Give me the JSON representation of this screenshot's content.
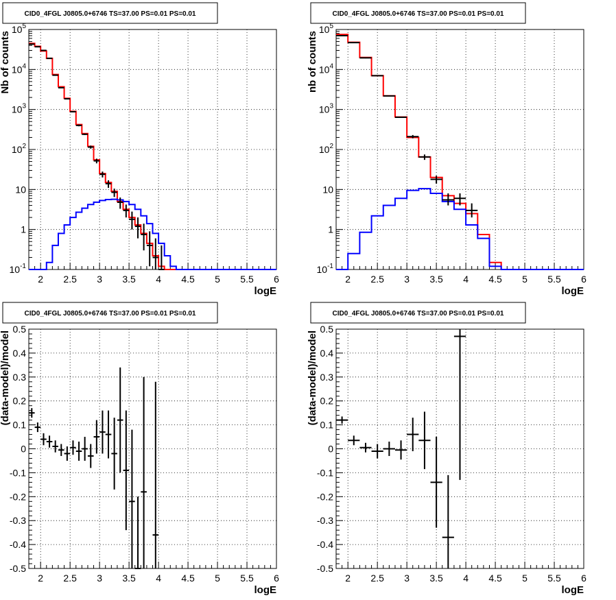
{
  "chart_data": [
    {
      "type": "line",
      "title": "CID0_4FGL J0805.0+6746 TS=37.00 PS=0.01 PS=0.01",
      "xlabel": "logE",
      "ylabel": "Nb of counts",
      "xlim": [
        1.8,
        6.0
      ],
      "ylim": [
        0.1,
        100000
      ],
      "yscale": "log",
      "grid": true,
      "x_tick_labels": [
        "2",
        "2.5",
        "3",
        "3.5",
        "4",
        "4.5",
        "5",
        "5.5",
        "6"
      ],
      "y_tick_labels": [
        "10^-1",
        "1",
        "10",
        "10^2",
        "10^3",
        "10^4",
        "10^5"
      ],
      "series": [
        {
          "color": "#ff0000",
          "style": "histogram",
          "bin_edges": [
            1.8,
            1.9,
            2.0,
            2.1,
            2.2,
            2.3,
            2.4,
            2.5,
            2.6,
            2.7,
            2.8,
            2.9,
            3.0,
            3.1,
            3.2,
            3.3,
            3.4,
            3.5,
            3.6,
            3.7,
            3.8,
            3.9,
            4.0,
            4.1,
            4.2,
            4.3,
            4.4,
            4.5,
            4.6,
            4.7,
            4.8,
            4.9,
            5.0,
            5.1,
            5.2,
            5.3,
            5.4,
            5.5,
            5.6,
            5.7,
            5.8,
            5.9,
            6.0
          ],
          "values": [
            45000,
            38000,
            29000,
            19000,
            7500,
            3700,
            1900,
            900,
            420,
            250,
            120,
            55,
            25,
            15,
            9,
            5,
            3.2,
            2,
            1.3,
            0.8,
            0.45,
            0.22,
            0.12,
            0.1,
            0.1,
            0.1,
            0.1,
            0.1,
            0.1,
            0.1,
            0.1,
            0.1,
            0.1,
            0.1,
            0.1,
            0.1,
            0.1,
            0.1,
            0.1,
            0.1,
            0.1,
            0.1
          ]
        },
        {
          "color": "#0000ff",
          "style": "histogram",
          "bin_edges": [
            1.8,
            1.9,
            2.0,
            2.1,
            2.2,
            2.3,
            2.4,
            2.5,
            2.6,
            2.7,
            2.8,
            2.9,
            3.0,
            3.1,
            3.2,
            3.3,
            3.4,
            3.5,
            3.6,
            3.7,
            3.8,
            3.9,
            4.0,
            4.1,
            4.2,
            4.3,
            4.4,
            4.5,
            4.6,
            4.7,
            4.8,
            4.9,
            5.0,
            5.1,
            5.2,
            5.3,
            5.4,
            5.5,
            5.6,
            5.7,
            5.8,
            5.9,
            6.0
          ],
          "values": [
            0.01,
            0.01,
            0.04,
            0.15,
            0.4,
            0.8,
            1.3,
            2,
            2.7,
            3.4,
            4.2,
            4.8,
            5.3,
            5.6,
            5.7,
            5.5,
            5.0,
            4.2,
            3.2,
            2.2,
            1.4,
            0.8,
            0.45,
            0.22,
            0.12,
            0.1,
            0.1,
            0.1,
            0.1,
            0.1,
            0.1,
            0.1,
            0.1,
            0.1,
            0.1,
            0.1,
            0.1,
            0.1,
            0.1,
            0.1,
            0.1,
            0.1
          ]
        },
        {
          "color": "#000000",
          "style": "points",
          "x": [
            1.85,
            1.95,
            2.05,
            2.15,
            2.25,
            2.35,
            2.45,
            2.55,
            2.65,
            2.75,
            2.85,
            2.95,
            3.05,
            3.15,
            3.25,
            3.35,
            3.45,
            3.55,
            3.65,
            3.75,
            3.85,
            3.95,
            4.05
          ],
          "y": [
            43000,
            37000,
            30000,
            19000,
            7200,
            3500,
            1850,
            880,
            400,
            240,
            115,
            52,
            24,
            14,
            8.5,
            4.8,
            3.0,
            1.8,
            1.2,
            0.75,
            0.4,
            0.2,
            0.1
          ],
          "ylow": [
            42000,
            36000,
            29500,
            18800,
            7100,
            3440,
            1800,
            850,
            380,
            230,
            105,
            45,
            20,
            11,
            6.5,
            3.3,
            2,
            1,
            0.6,
            0.3,
            0.12,
            0.05,
            0.02
          ],
          "yhigh": [
            44000,
            38000,
            30500,
            19200,
            7300,
            3560,
            1900,
            910,
            420,
            250,
            125,
            59,
            28,
            17,
            10.5,
            6.3,
            4.2,
            2.8,
            2.0,
            1.4,
            0.9,
            0.6,
            0.4
          ]
        }
      ]
    },
    {
      "type": "line",
      "title": "CID0_4FGL J0805.0+6746 TS=37.00 PS=0.01 PS=0.01",
      "xlabel": "logE",
      "ylabel": "nb of counts",
      "xlim": [
        1.8,
        6.0
      ],
      "ylim": [
        0.1,
        100000
      ],
      "yscale": "log",
      "grid": true,
      "x_tick_labels": [
        "2",
        "2.5",
        "3",
        "3.5",
        "4",
        "4.5",
        "5",
        "5.5",
        "6"
      ],
      "y_tick_labels": [
        "10^-1",
        "1",
        "10",
        "10^2",
        "10^3",
        "10^4",
        "10^5"
      ],
      "series": [
        {
          "color": "#ff0000",
          "style": "histogram",
          "bin_edges": [
            1.8,
            2.0,
            2.2,
            2.4,
            2.6,
            2.8,
            3.0,
            3.2,
            3.4,
            3.6,
            3.8,
            4.0,
            4.2,
            4.4,
            4.6,
            4.8,
            5.0,
            5.2,
            5.4,
            5.6,
            5.8,
            6.0
          ],
          "values": [
            75000,
            48000,
            20000,
            7000,
            2200,
            650,
            200,
            65,
            20,
            7,
            4.5,
            2.5,
            0.75,
            0.15,
            0.1,
            0.1,
            0.1,
            0.1,
            0.1,
            0.1,
            0.1
          ]
        },
        {
          "color": "#0000ff",
          "style": "histogram",
          "bin_edges": [
            1.8,
            2.0,
            2.2,
            2.4,
            2.6,
            2.8,
            3.0,
            3.2,
            3.4,
            3.6,
            3.8,
            4.0,
            4.2,
            4.4,
            4.6,
            4.8,
            5.0,
            5.2,
            5.4,
            5.6,
            5.8,
            6.0
          ],
          "values": [
            0.01,
            0.25,
            0.85,
            2.2,
            4.0,
            6.0,
            9.5,
            10.5,
            8.0,
            5.0,
            3.2,
            1.3,
            0.6,
            0.12,
            0.1,
            0.1,
            0.1,
            0.1,
            0.1,
            0.1,
            0.1
          ]
        },
        {
          "color": "#000000",
          "style": "points",
          "x": [
            1.9,
            2.1,
            2.3,
            2.5,
            2.7,
            2.9,
            3.1,
            3.3,
            3.5,
            3.7,
            3.9,
            4.1
          ],
          "y": [
            70000,
            47000,
            19500,
            7000,
            2180,
            640,
            210,
            65,
            18,
            5.5,
            6.0,
            3.0
          ],
          "ylow": [
            68000,
            46000,
            19000,
            6900,
            2150,
            620,
            190,
            55,
            14,
            4,
            4,
            2
          ],
          "yhigh": [
            72000,
            48000,
            20000,
            7100,
            2210,
            660,
            230,
            75,
            22,
            8,
            8,
            4.5
          ]
        }
      ]
    },
    {
      "type": "scatter",
      "title": "CID0_4FGL J0805.0+6746 TS=37.00 PS=0.01 PS=0.01",
      "xlabel": "logE",
      "ylabel": "(data-model)/model",
      "xlim": [
        1.8,
        6.0
      ],
      "ylim": [
        -0.5,
        0.5
      ],
      "grid": true,
      "x_tick_labels": [
        "2",
        "2.5",
        "3",
        "3.5",
        "4",
        "4.5",
        "5",
        "5.5",
        "6"
      ],
      "y_tick_labels": [
        "-0.5",
        "-0.4",
        "-0.3",
        "-0.2",
        "-0.1",
        "0",
        "0.1",
        "0.2",
        "0.3",
        "0.4",
        "0.5"
      ],
      "series": [
        {
          "color": "#000000",
          "x": [
            1.85,
            1.95,
            2.05,
            2.15,
            2.25,
            2.35,
            2.45,
            2.55,
            2.65,
            2.75,
            2.85,
            2.95,
            3.05,
            3.15,
            3.25,
            3.35,
            3.45,
            3.55,
            3.65,
            3.75,
            3.95
          ],
          "y": [
            0.15,
            0.09,
            0.04,
            0.03,
            0.01,
            -0.005,
            -0.02,
            0.005,
            -0.01,
            0.0,
            -0.03,
            0.05,
            0.07,
            0.06,
            -0.02,
            0.12,
            -0.09,
            -0.22,
            -0.5,
            -0.18,
            -0.36
          ],
          "yerr": [
            0.02,
            0.02,
            0.025,
            0.025,
            0.025,
            0.025,
            0.03,
            0.03,
            0.04,
            0.05,
            0.05,
            0.07,
            0.09,
            0.1,
            0.15,
            0.22,
            0.25,
            0.3,
            0.3,
            0.48,
            0.64
          ]
        }
      ]
    },
    {
      "type": "scatter",
      "title": "CID0_4FGL J0805.0+6746 TS=37.00 PS=0.01 PS=0.01",
      "xlabel": "logE",
      "ylabel": "(data-model)/model",
      "xlim": [
        1.8,
        6.0
      ],
      "ylim": [
        -0.5,
        0.5
      ],
      "grid": true,
      "x_tick_labels": [
        "2",
        "2.5",
        "3",
        "3.5",
        "4",
        "4.5",
        "5",
        "5.5",
        "6"
      ],
      "y_tick_labels": [
        "-0.5",
        "-0.4",
        "-0.3",
        "-0.2",
        "-0.1",
        "0",
        "0.1",
        "0.2",
        "0.3",
        "0.4",
        "0.5"
      ],
      "series": [
        {
          "color": "#000000",
          "x": [
            1.9,
            2.1,
            2.3,
            2.5,
            2.7,
            2.9,
            3.1,
            3.3,
            3.5,
            3.7,
            3.9
          ],
          "y": [
            0.12,
            0.035,
            0.005,
            -0.01,
            0.0,
            -0.005,
            0.06,
            0.035,
            -0.14,
            -0.37,
            0.47
          ],
          "yerr": [
            0.015,
            0.02,
            0.02,
            0.03,
            0.03,
            0.04,
            0.07,
            0.12,
            0.19,
            0.26,
            0.6
          ]
        }
      ]
    }
  ]
}
